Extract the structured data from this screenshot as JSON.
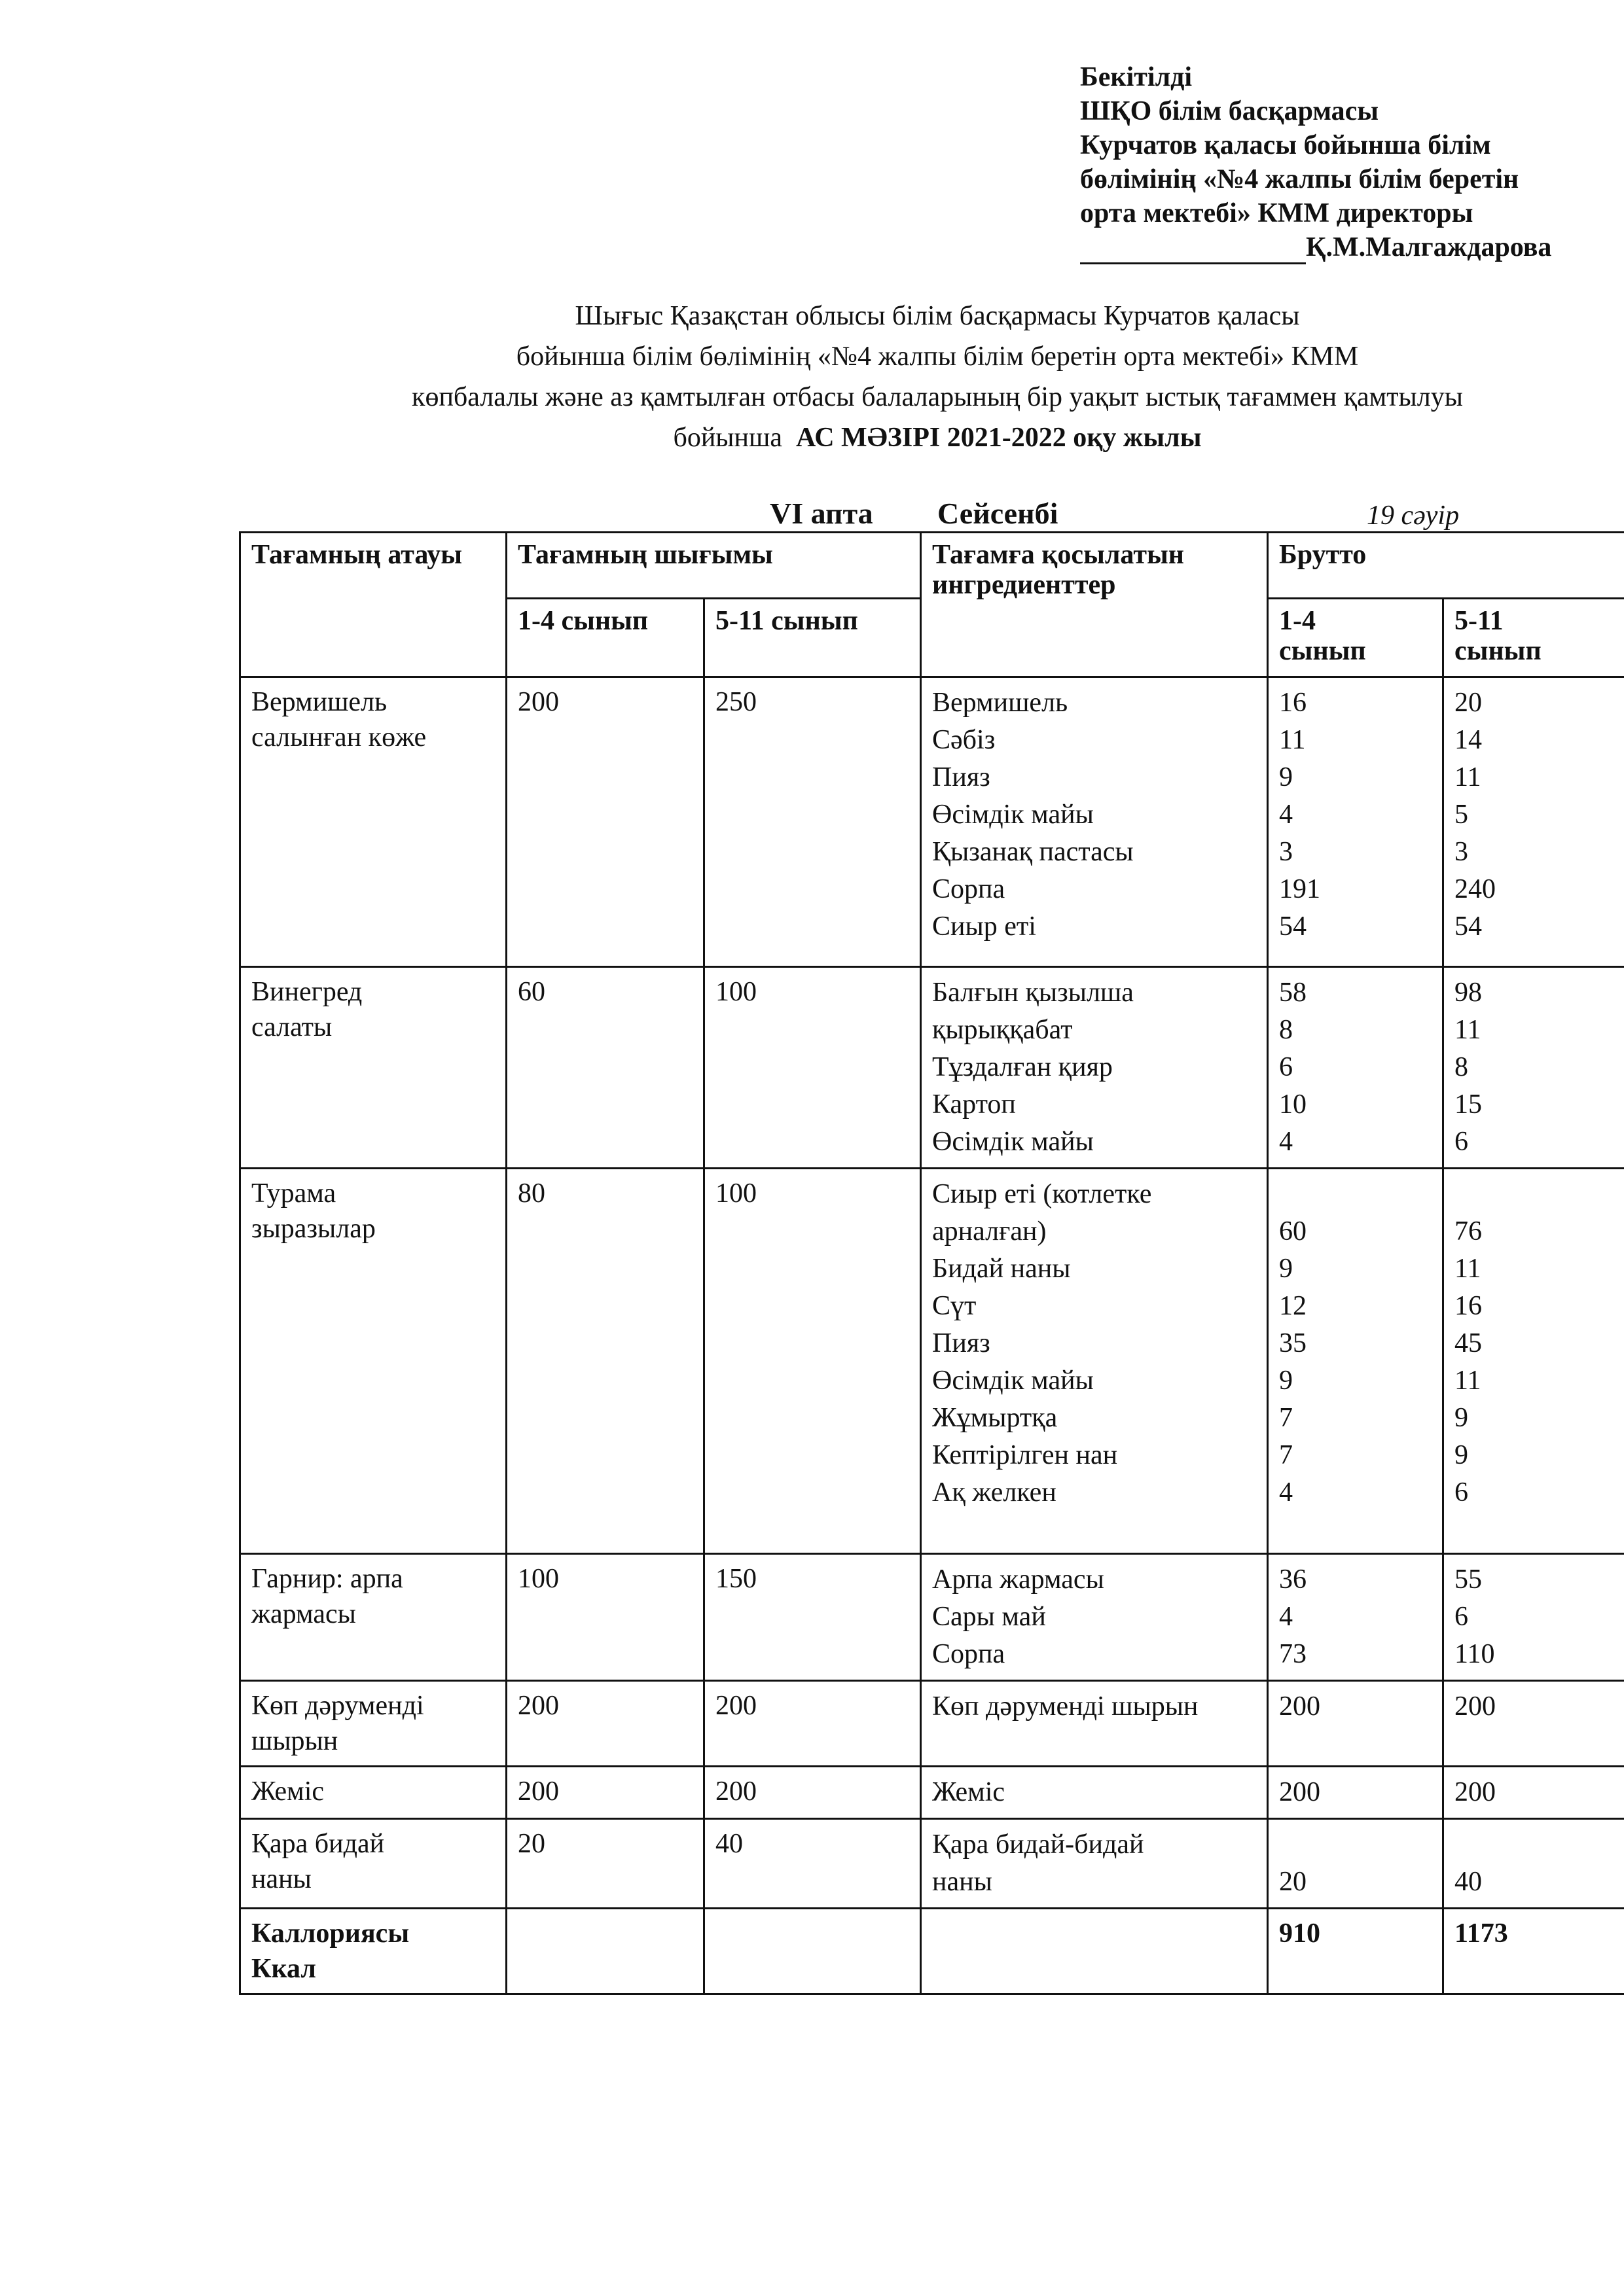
{
  "approval": {
    "lines": [
      "Бекітілді",
      "ШҚО білім басқармасы",
      "Курчатов қаласы бойынша білім",
      "бөлімінің «№4 жалпы білім беретін",
      "орта мектебі» КММ директоры"
    ],
    "signatory": "Қ.М.Малгаждарова"
  },
  "title": {
    "lines": [
      "Шығыс Қазақстан облысы білім басқармасы Курчатов қаласы",
      "бойынша білім бөлімінің «№4 жалпы білім беретін орта мектебі» КММ",
      "көпбалалы және аз қамтылған отбасы балаларының бір уақыт ыстық тағаммен қамтылуы"
    ],
    "last_prefix": "бойынша",
    "last_bold": "АС МӘЗІРІ 2021-2022 оқу жылы"
  },
  "week": "VI апта",
  "day": "Сейсенбі",
  "date": "19 сәуір",
  "table": {
    "headers": {
      "dish": "Тағамның атауы",
      "yield": "Тағамның шығымы",
      "yield_1_4": "1-4 сынып",
      "yield_5_11": "5-11 сынып",
      "ingredients": "Тағамға қосылатын ингредиенттер",
      "brutto": "Брутто",
      "brutto_1_4": "1-4 сынып",
      "brutto_5_11": "5-11 сынып"
    },
    "rows": [
      {
        "dish": [
          "Вермишель",
          "салынған көже"
        ],
        "yield_1_4": 200,
        "yield_5_11": 250,
        "items": [
          {
            "name": "Вермишель",
            "b1": 16,
            "b2": 20
          },
          {
            "name": "Сәбіз",
            "b1": 11,
            "b2": 14
          },
          {
            "name": "Пияз",
            "b1": 9,
            "b2": 11
          },
          {
            "name": "Өсімдік майы",
            "b1": 4,
            "b2": 5
          },
          {
            "name": "Қызанақ пастасы",
            "b1": 3,
            "b2": 3
          },
          {
            "name": "Сорпа",
            "b1": 191,
            "b2": 240
          },
          {
            "name": "Сиыр еті",
            "b1": 54,
            "b2": 54
          }
        ]
      },
      {
        "dish": [
          "Винегред",
          "салаты"
        ],
        "yield_1_4": 60,
        "yield_5_11": 100,
        "items": [
          {
            "name": "Балғын қызылша",
            "b1": 58,
            "b2": 98
          },
          {
            "name": "қырыққабат",
            "b1": 8,
            "b2": 11
          },
          {
            "name": "Тұздалған қияр",
            "b1": 6,
            "b2": 8
          },
          {
            "name": "Картоп",
            "b1": 10,
            "b2": 15
          },
          {
            "name": "Өсімдік майы",
            "b1": 4,
            "b2": 6
          }
        ]
      },
      {
        "dish": [
          "Турама",
          "зыразылар"
        ],
        "yield_1_4": 80,
        "yield_5_11": 100,
        "items": [
          {
            "name": [
              "Сиыр еті (котлетке",
              "арналған)"
            ],
            "b1": 60,
            "b2": 76
          },
          {
            "name": "Бидай наны",
            "b1": 9,
            "b2": 11
          },
          {
            "name": "Сүт",
            "b1": 12,
            "b2": 16
          },
          {
            "name": "Пияз",
            "b1": 35,
            "b2": 45
          },
          {
            "name": "Өсімдік майы",
            "b1": 9,
            "b2": 11
          },
          {
            "name": "Жұмыртқа",
            "b1": 7,
            "b2": 9
          },
          {
            "name": "Кептірілген нан",
            "b1": 7,
            "b2": 9
          },
          {
            "name": "Ақ желкен",
            "b1": 4,
            "b2": 6
          }
        ]
      },
      {
        "dish": [
          "Гарнир: арпа",
          "жармасы"
        ],
        "yield_1_4": 100,
        "yield_5_11": 150,
        "items": [
          {
            "name": "Арпа жармасы",
            "b1": 36,
            "b2": 55
          },
          {
            "name": "Сары май",
            "b1": 4,
            "b2": 6
          },
          {
            "name": "Сорпа",
            "b1": 73,
            "b2": 110
          }
        ]
      },
      {
        "dish": [
          "Көп дәруменді",
          "шырын"
        ],
        "yield_1_4": 200,
        "yield_5_11": 200,
        "items": [
          {
            "name": "Көп дәруменді шырын",
            "b1": 200,
            "b2": 200
          }
        ]
      },
      {
        "dish": [
          "Жеміс"
        ],
        "yield_1_4": 200,
        "yield_5_11": 200,
        "items": [
          {
            "name": "Жеміс",
            "b1": 200,
            "b2": 200
          }
        ]
      },
      {
        "dish": [
          "Қара бидай",
          "наны"
        ],
        "yield_1_4": 20,
        "yield_5_11": 40,
        "items": [
          {
            "name": [
              "Қара бидай-бидай",
              "наны"
            ],
            "b1": 20,
            "b2": 40
          }
        ]
      }
    ],
    "total": {
      "label": [
        "Каллориясы",
        "Ккал"
      ],
      "b1": 910,
      "b2": 1173
    }
  }
}
